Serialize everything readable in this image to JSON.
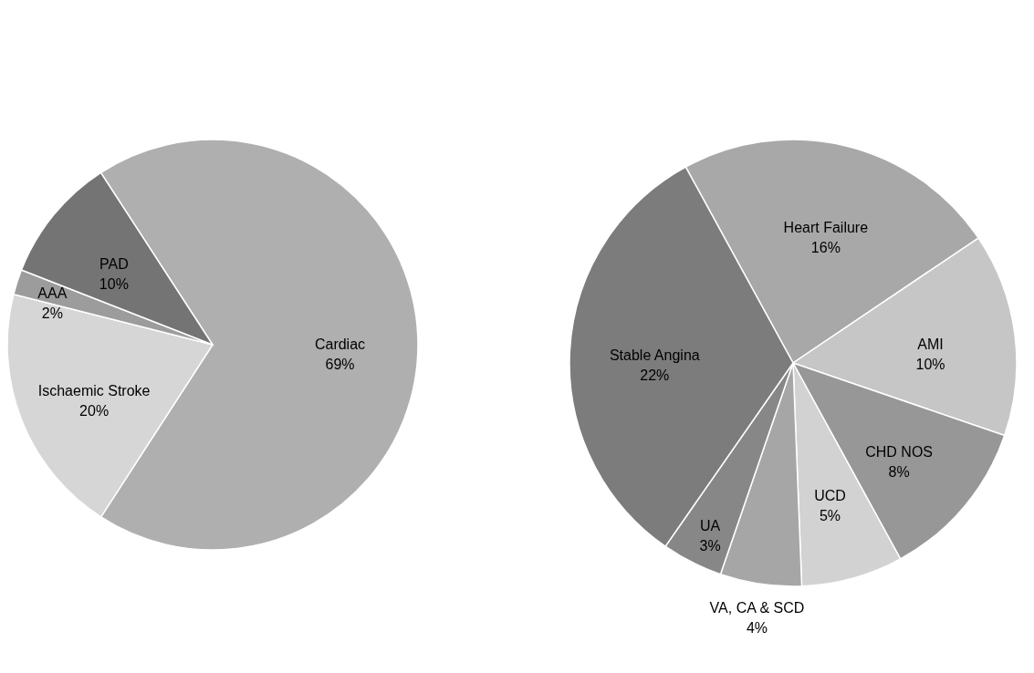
{
  "chart_data": [
    {
      "type": "pie",
      "categories": [
        "Cardiac",
        "Ischaemic Stroke",
        "AAA",
        "PAD"
      ],
      "values": [
        69,
        20,
        2,
        10
      ],
      "value_labels": [
        "69%",
        "20%",
        "2%",
        "10%"
      ],
      "colors": [
        "#afafaf",
        "#d6d6d6",
        "#9c9c9c",
        "#747474"
      ]
    },
    {
      "type": "pie",
      "categories": [
        "Heart Failure",
        "AMI",
        "CHD NOS",
        "UCD",
        "VA, CA & SCD",
        "UA",
        "Stable Angina"
      ],
      "values": [
        16,
        10,
        8,
        5,
        4,
        3,
        22
      ],
      "value_labels": [
        "16%",
        "10%",
        "8%",
        "5%",
        "4%",
        "3%",
        "22%"
      ],
      "colors": [
        "#a8a8a8",
        "#c6c6c6",
        "#979797",
        "#d2d2d2",
        "#a6a6a6",
        "#878787",
        "#7c7c7c"
      ]
    }
  ]
}
